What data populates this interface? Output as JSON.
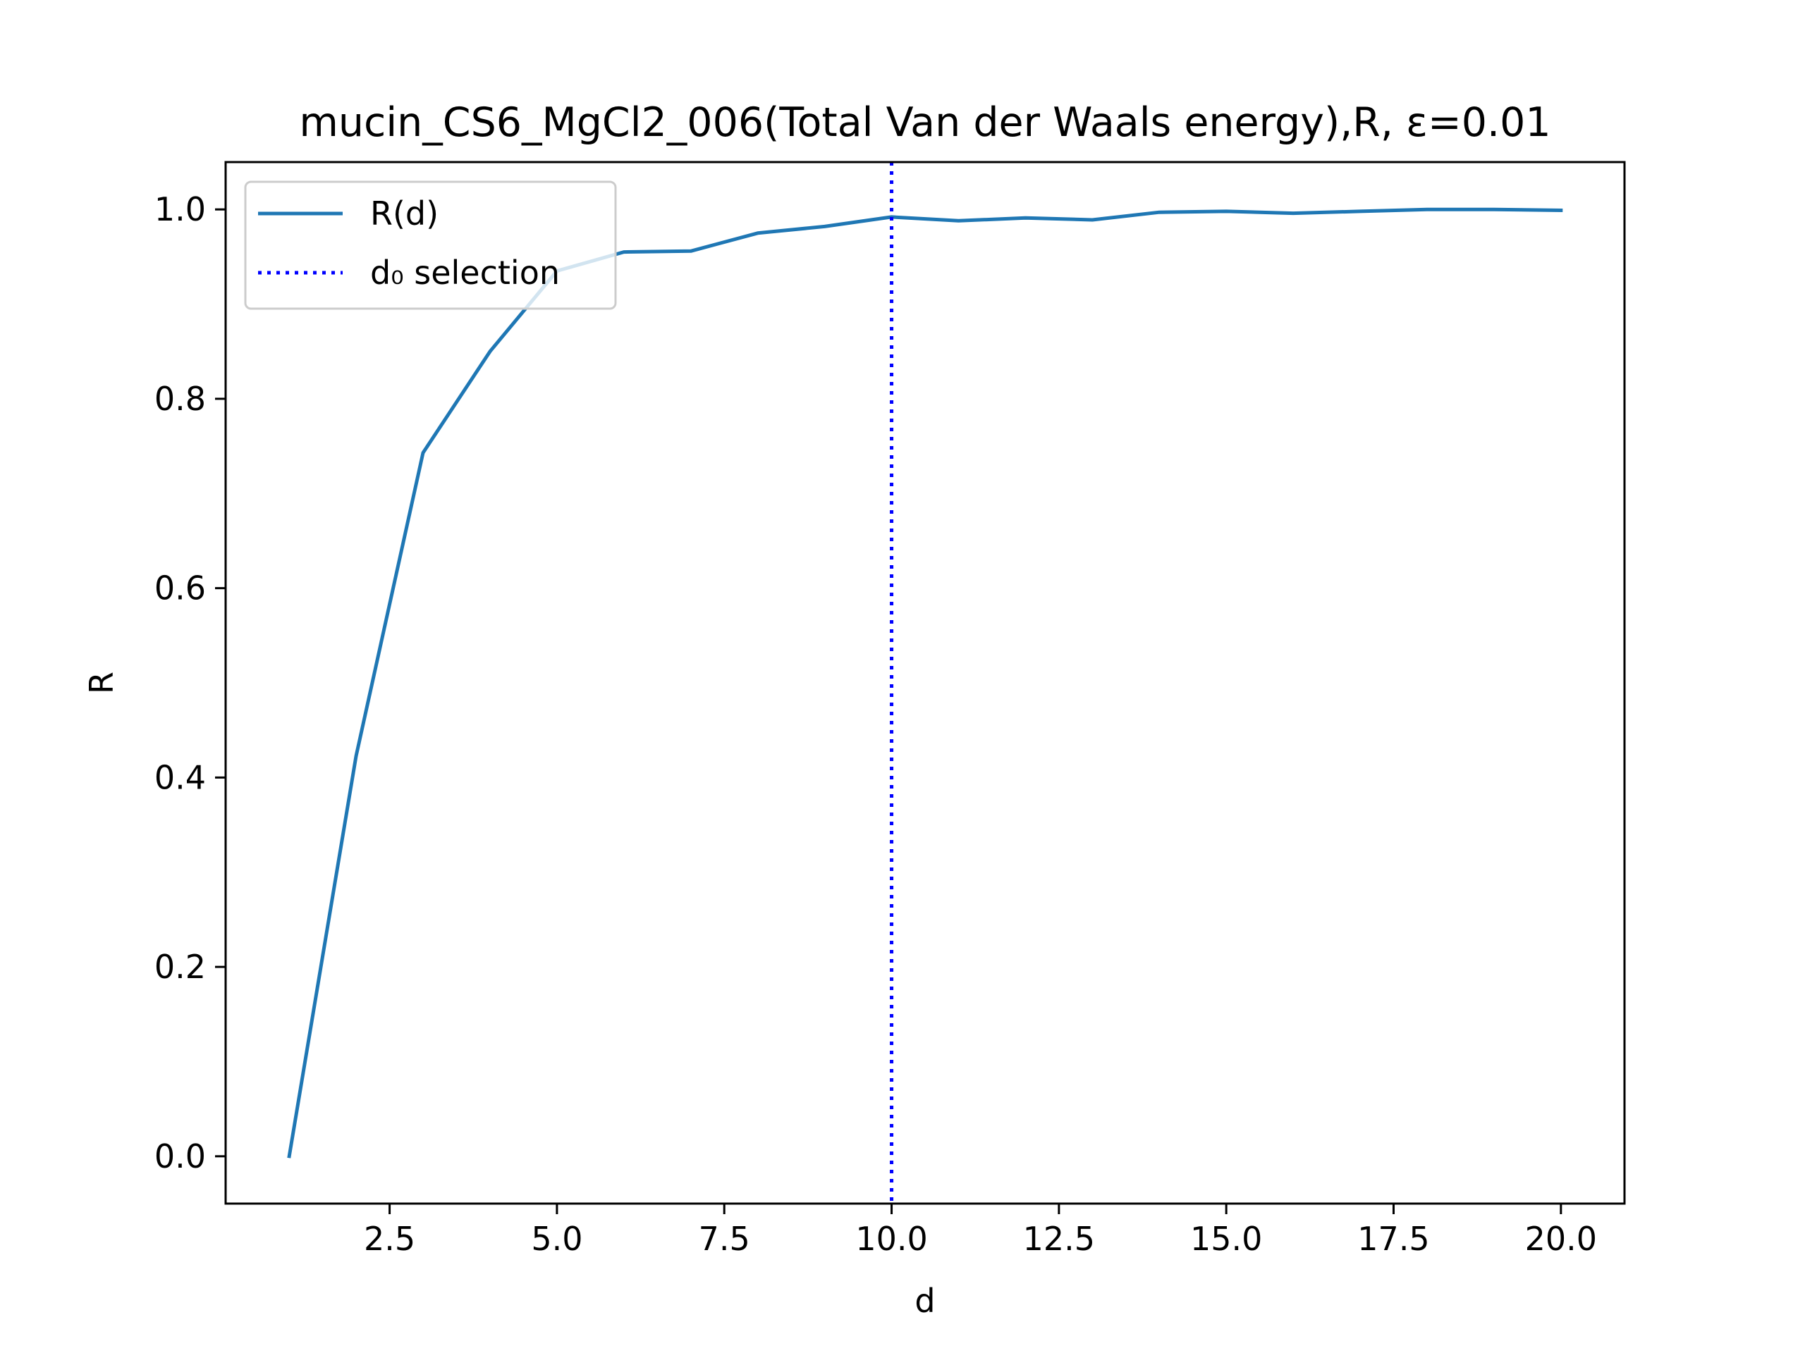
{
  "chart_data": {
    "type": "line",
    "title": "mucin_CS6_MgCl2_006(Total Van der Waals energy),R, ε=0.01",
    "xlabel": "d",
    "ylabel": "R",
    "xlim": [
      0.05,
      20.95
    ],
    "ylim": [
      -0.05,
      1.05
    ],
    "x_ticks": [
      2.5,
      5.0,
      7.5,
      10.0,
      12.5,
      15.0,
      17.5,
      20.0
    ],
    "x_tick_labels": [
      "2.5",
      "5.0",
      "7.5",
      "10.0",
      "12.5",
      "15.0",
      "17.5",
      "20.0"
    ],
    "y_ticks": [
      0.0,
      0.2,
      0.4,
      0.6,
      0.8,
      1.0
    ],
    "y_tick_labels": [
      "0.0",
      "0.2",
      "0.4",
      "0.6",
      "0.8",
      "1.0"
    ],
    "grid": false,
    "legend_position": "upper-left",
    "series": [
      {
        "name": "R(d)",
        "color": "#1f77b4",
        "style": "solid",
        "x": [
          1,
          2,
          3,
          4,
          5,
          6,
          7,
          8,
          9,
          10,
          11,
          12,
          13,
          14,
          15,
          16,
          17,
          18,
          19,
          20
        ],
        "values": [
          0.0,
          0.423,
          0.743,
          0.85,
          0.935,
          0.955,
          0.956,
          0.975,
          0.982,
          0.992,
          0.988,
          0.991,
          0.989,
          0.997,
          0.998,
          0.996,
          0.998,
          1.0,
          1.0,
          0.999
        ]
      }
    ],
    "vertical_lines": [
      {
        "name": "d₀ selection",
        "x": 10,
        "color": "#0000ff",
        "style": "dotted"
      }
    ]
  }
}
